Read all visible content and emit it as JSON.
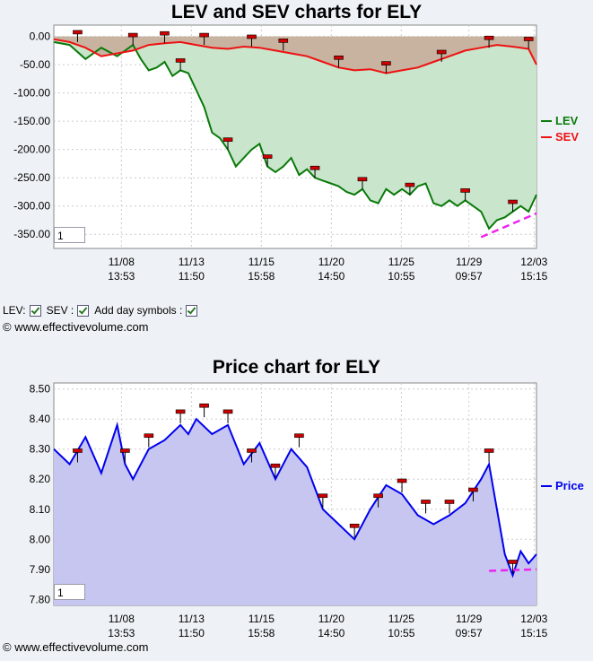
{
  "chart_data": [
    {
      "type": "line",
      "title": "LEV and SEV charts for ELY",
      "y_ticks": [
        "0.00",
        "-50.00",
        "-100.00",
        "-150.00",
        "-200.00",
        "-250.00",
        "-300.00",
        "-350.00"
      ],
      "ylim": [
        -375,
        20
      ],
      "x_tick_labels": [
        [
          "11/08",
          "13:53"
        ],
        [
          "11/13",
          "11:50"
        ],
        [
          "11/15",
          "15:58"
        ],
        [
          "11/20",
          "14:50"
        ],
        [
          "11/25",
          "10:55"
        ],
        [
          "11/29",
          "09:57"
        ],
        [
          "12/03",
          "15:15"
        ]
      ],
      "legend": "right",
      "colors": {
        "LEV": "#0a7a0a",
        "SEV": "#ee1111",
        "fill_lev": "#c9e5cc",
        "fill_sev": "#c8b3a0",
        "trend": "#ee22ee"
      },
      "series": [
        {
          "name": "LEV",
          "points": [
            [
              0,
              -10
            ],
            [
              2,
              -15
            ],
            [
              4,
              -40
            ],
            [
              6,
              -20
            ],
            [
              8,
              -35
            ],
            [
              9,
              -25
            ],
            [
              10,
              -15
            ],
            [
              11,
              -40
            ],
            [
              12,
              -60
            ],
            [
              13,
              -55
            ],
            [
              14,
              -45
            ],
            [
              15,
              -70
            ],
            [
              16,
              -60
            ],
            [
              17,
              -65
            ],
            [
              18,
              -95
            ],
            [
              19,
              -125
            ],
            [
              20,
              -170
            ],
            [
              21,
              -180
            ],
            [
              22,
              -200
            ],
            [
              23,
              -230
            ],
            [
              24,
              -215
            ],
            [
              25,
              -200
            ],
            [
              26,
              -190
            ],
            [
              27,
              -230
            ],
            [
              28,
              -240
            ],
            [
              29,
              -230
            ],
            [
              30,
              -215
            ],
            [
              31,
              -245
            ],
            [
              32,
              -235
            ],
            [
              33,
              -250
            ],
            [
              34,
              -255
            ],
            [
              35,
              -260
            ],
            [
              36,
              -265
            ],
            [
              37,
              -275
            ],
            [
              38,
              -280
            ],
            [
              39,
              -270
            ],
            [
              40,
              -290
            ],
            [
              41,
              -295
            ],
            [
              42,
              -270
            ],
            [
              43,
              -280
            ],
            [
              44,
              -270
            ],
            [
              45,
              -280
            ],
            [
              46,
              -265
            ],
            [
              47,
              -260
            ],
            [
              48,
              -295
            ],
            [
              49,
              -300
            ],
            [
              50,
              -290
            ],
            [
              51,
              -300
            ],
            [
              52,
              -290
            ],
            [
              53,
              -300
            ],
            [
              54,
              -310
            ],
            [
              55,
              -340
            ],
            [
              56,
              -325
            ],
            [
              57,
              -320
            ],
            [
              58,
              -310
            ],
            [
              59,
              -300
            ],
            [
              60,
              -310
            ],
            [
              61,
              -280
            ]
          ]
        },
        {
          "name": "SEV",
          "points": [
            [
              0,
              -5
            ],
            [
              2,
              -10
            ],
            [
              4,
              -20
            ],
            [
              6,
              -35
            ],
            [
              8,
              -30
            ],
            [
              10,
              -25
            ],
            [
              12,
              -15
            ],
            [
              14,
              -12
            ],
            [
              16,
              -10
            ],
            [
              18,
              -15
            ],
            [
              20,
              -20
            ],
            [
              22,
              -22
            ],
            [
              24,
              -18
            ],
            [
              26,
              -20
            ],
            [
              28,
              -25
            ],
            [
              30,
              -30
            ],
            [
              32,
              -35
            ],
            [
              34,
              -45
            ],
            [
              36,
              -55
            ],
            [
              38,
              -60
            ],
            [
              40,
              -58
            ],
            [
              42,
              -65
            ],
            [
              44,
              -60
            ],
            [
              46,
              -55
            ],
            [
              48,
              -45
            ],
            [
              50,
              -35
            ],
            [
              52,
              -25
            ],
            [
              54,
              -20
            ],
            [
              56,
              -15
            ],
            [
              58,
              -18
            ],
            [
              60,
              -22
            ],
            [
              61,
              -50
            ]
          ]
        }
      ]
    },
    {
      "type": "line",
      "title": "Price chart for ELY",
      "y_ticks": [
        "8.50",
        "8.40",
        "8.30",
        "8.20",
        "8.10",
        "8.00",
        "7.90",
        "7.80"
      ],
      "ylim": [
        7.78,
        8.52
      ],
      "x_tick_labels": [
        [
          "11/08",
          "13:53"
        ],
        [
          "11/13",
          "11:50"
        ],
        [
          "11/15",
          "15:58"
        ],
        [
          "11/20",
          "14:50"
        ],
        [
          "11/25",
          "10:55"
        ],
        [
          "11/29",
          "09:57"
        ],
        [
          "12/03",
          "15:15"
        ]
      ],
      "legend": "right",
      "colors": {
        "Price": "#0000ee",
        "fill": "#c6c6f0",
        "trend": "#ee22ee"
      },
      "series": [
        {
          "name": "Price",
          "points": [
            [
              0,
              8.3
            ],
            [
              2,
              8.25
            ],
            [
              4,
              8.34
            ],
            [
              6,
              8.22
            ],
            [
              8,
              8.38
            ],
            [
              9,
              8.25
            ],
            [
              10,
              8.2
            ],
            [
              12,
              8.3
            ],
            [
              14,
              8.33
            ],
            [
              16,
              8.38
            ],
            [
              17,
              8.35
            ],
            [
              18,
              8.4
            ],
            [
              20,
              8.35
            ],
            [
              22,
              8.38
            ],
            [
              24,
              8.25
            ],
            [
              26,
              8.32
            ],
            [
              28,
              8.2
            ],
            [
              30,
              8.3
            ],
            [
              32,
              8.24
            ],
            [
              34,
              8.1
            ],
            [
              36,
              8.05
            ],
            [
              38,
              8.0
            ],
            [
              40,
              8.1
            ],
            [
              42,
              8.18
            ],
            [
              44,
              8.15
            ],
            [
              46,
              8.08
            ],
            [
              48,
              8.05
            ],
            [
              50,
              8.08
            ],
            [
              52,
              8.12
            ],
            [
              54,
              8.2
            ],
            [
              55,
              8.25
            ],
            [
              56,
              8.1
            ],
            [
              57,
              7.95
            ],
            [
              58,
              7.88
            ],
            [
              59,
              7.96
            ],
            [
              60,
              7.92
            ],
            [
              61,
              7.95
            ]
          ]
        }
      ]
    }
  ],
  "ui": {
    "spin1_value": "1",
    "spin2_value": "1",
    "lev_label": "LEV:",
    "sev_label": "SEV :",
    "day_label": "Add day symbols :",
    "copyright": "© www.effectivevolume.com"
  }
}
